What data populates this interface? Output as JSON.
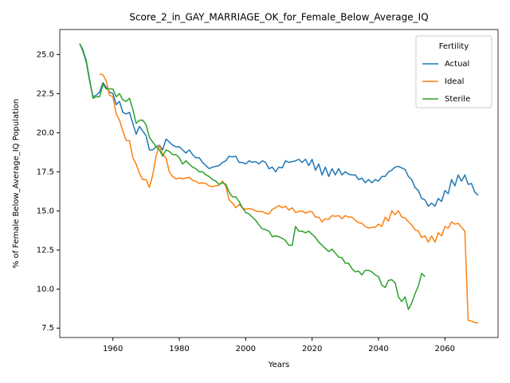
{
  "chart_data": {
    "type": "line",
    "title": "Score_2_in_GAY_MARRIAGE_OK_for_Female_Below_Average_IQ",
    "xlabel": "Years",
    "ylabel": "% of Female Below_Average_IQ Population",
    "legend_title": "Fertility",
    "legend_position": "upper right",
    "grid": false,
    "x": [
      1950,
      1951,
      1952,
      1953,
      1954,
      1955,
      1956,
      1957,
      1958,
      1959,
      1960,
      1961,
      1962,
      1963,
      1964,
      1965,
      1966,
      1967,
      1968,
      1969,
      1970,
      1971,
      1972,
      1973,
      1974,
      1975,
      1976,
      1977,
      1978,
      1979,
      1980,
      1981,
      1982,
      1983,
      1984,
      1985,
      1986,
      1987,
      1988,
      1989,
      1990,
      1991,
      1992,
      1993,
      1994,
      1995,
      1996,
      1997,
      1998,
      1999,
      2000,
      2001,
      2002,
      2003,
      2004,
      2005,
      2006,
      2007,
      2008,
      2009,
      2010,
      2011,
      2012,
      2013,
      2014,
      2015,
      2016,
      2017,
      2018,
      2019,
      2020,
      2021,
      2022,
      2023,
      2024,
      2025,
      2026,
      2027,
      2028,
      2029,
      2030,
      2031,
      2032,
      2033,
      2034,
      2035,
      2036,
      2037,
      2038,
      2039,
      2040,
      2041,
      2042,
      2043,
      2044,
      2045,
      2046,
      2047,
      2048,
      2049,
      2050,
      2051,
      2052,
      2053,
      2054,
      2055,
      2056,
      2057,
      2058,
      2059,
      2060,
      2061,
      2062,
      2063,
      2064,
      2065,
      2066,
      2067,
      2068,
      2069,
      2070
    ],
    "series": [
      {
        "name": "Actual",
        "color": "#1f77b4",
        "values": [
          25.7,
          25.2,
          24.5,
          23.3,
          22.3,
          22.4,
          22.6,
          23.2,
          22.9,
          22.6,
          22.5,
          21.8,
          22.0,
          21.3,
          21.2,
          21.3,
          20.6,
          19.9,
          20.4,
          20.1,
          19.8,
          18.9,
          18.9,
          19.1,
          19.2,
          18.9,
          19.6,
          19.4,
          19.2,
          19.1,
          19.1,
          18.9,
          18.7,
          18.9,
          18.6,
          18.4,
          18.4,
          18.1,
          17.9,
          17.7,
          17.8,
          17.85,
          17.9,
          18.1,
          18.2,
          18.5,
          18.45,
          18.5,
          18.1,
          18.1,
          18.0,
          18.2,
          18.1,
          18.15,
          18.0,
          18.2,
          18.1,
          17.7,
          17.8,
          17.5,
          17.8,
          17.75,
          18.2,
          18.1,
          18.15,
          18.2,
          18.3,
          18.1,
          18.3,
          17.9,
          18.3,
          17.6,
          18.0,
          17.3,
          17.8,
          17.2,
          17.7,
          17.3,
          17.7,
          17.3,
          17.5,
          17.35,
          17.3,
          17.3,
          17.0,
          17.1,
          16.8,
          17.0,
          16.8,
          17.0,
          16.9,
          17.2,
          17.2,
          17.5,
          17.6,
          17.8,
          17.85,
          17.75,
          17.65,
          17.2,
          17.0,
          16.5,
          16.3,
          15.8,
          15.7,
          15.3,
          15.5,
          15.3,
          15.8,
          15.6,
          16.3,
          16.1,
          17.0,
          16.6,
          17.3,
          16.9,
          17.3,
          16.7,
          16.75,
          16.2,
          16.0
        ]
      },
      {
        "name": "Ideal",
        "color": "#ff7f0e",
        "values": [
          null,
          null,
          null,
          null,
          null,
          null,
          23.75,
          23.7,
          23.3,
          22.4,
          22.3,
          21.2,
          20.8,
          20.1,
          19.5,
          19.5,
          18.4,
          18.0,
          17.4,
          17.0,
          17.0,
          16.5,
          17.3,
          18.5,
          19.2,
          18.6,
          18.4,
          17.5,
          17.2,
          17.05,
          17.1,
          17.05,
          17.1,
          17.15,
          16.95,
          16.9,
          16.75,
          16.8,
          16.75,
          16.6,
          16.55,
          16.6,
          16.65,
          16.9,
          16.6,
          15.7,
          15.5,
          15.2,
          15.4,
          15.2,
          15.1,
          15.15,
          15.1,
          15.0,
          14.95,
          14.95,
          14.85,
          14.8,
          15.1,
          15.2,
          15.35,
          15.2,
          15.3,
          15.05,
          15.2,
          14.9,
          14.95,
          15.0,
          14.85,
          14.95,
          14.95,
          14.6,
          14.6,
          14.3,
          14.5,
          14.45,
          14.7,
          14.65,
          14.7,
          14.5,
          14.7,
          14.6,
          14.6,
          14.4,
          14.25,
          14.2,
          14.0,
          13.9,
          13.95,
          13.95,
          14.15,
          14.0,
          14.6,
          14.35,
          15.0,
          14.75,
          15.0,
          14.6,
          14.55,
          14.3,
          14.1,
          13.8,
          13.7,
          13.3,
          13.4,
          13.0,
          13.4,
          13.0,
          13.6,
          13.4,
          14.0,
          13.9,
          14.3,
          14.15,
          14.2,
          13.95,
          13.7,
          8.0,
          7.95,
          7.85,
          7.85
        ]
      },
      {
        "name": "Sterile",
        "color": "#2ca02c",
        "values": [
          25.7,
          25.3,
          24.6,
          23.4,
          22.2,
          22.3,
          22.3,
          23.1,
          22.8,
          22.8,
          22.8,
          22.3,
          22.5,
          22.1,
          22.0,
          22.2,
          21.5,
          20.6,
          20.8,
          20.8,
          20.5,
          19.7,
          19.4,
          19.1,
          18.9,
          18.5,
          18.9,
          18.8,
          18.6,
          18.6,
          18.4,
          18.0,
          18.2,
          18.0,
          17.8,
          17.7,
          17.5,
          17.5,
          17.3,
          17.2,
          17.0,
          16.9,
          16.7,
          16.8,
          16.7,
          16.2,
          15.9,
          15.9,
          15.6,
          15.2,
          14.9,
          14.8,
          14.6,
          14.4,
          14.1,
          13.85,
          13.8,
          13.7,
          13.35,
          13.4,
          13.35,
          13.25,
          13.1,
          12.8,
          12.8,
          14.0,
          13.7,
          13.7,
          13.6,
          13.7,
          13.5,
          13.3,
          13.0,
          12.8,
          12.6,
          12.4,
          12.55,
          12.3,
          12.05,
          12.0,
          11.65,
          11.65,
          11.3,
          11.1,
          11.15,
          10.9,
          11.2,
          11.2,
          11.1,
          10.9,
          10.8,
          10.25,
          10.1,
          10.55,
          10.6,
          10.4,
          9.5,
          9.2,
          9.5,
          8.7,
          9.1,
          9.7,
          10.2,
          11.0,
          10.8,
          null,
          null,
          null,
          null,
          null,
          null,
          null,
          null,
          null,
          null,
          null,
          null,
          null,
          null,
          null,
          null
        ]
      }
    ],
    "xlim": [
      1944,
      2076
    ],
    "xticks": [
      1960,
      1980,
      2000,
      2020,
      2040,
      2060
    ],
    "ylim": [
      6.9,
      26.6
    ],
    "yticks": [
      7.5,
      {
        "value": 10,
        "label": "10.0"
      },
      12.5,
      {
        "value": 15,
        "label": "15.0"
      },
      17.5,
      {
        "value": 20,
        "label": "20.0"
      },
      22.5,
      {
        "value": 25,
        "label": "25.0"
      }
    ]
  }
}
